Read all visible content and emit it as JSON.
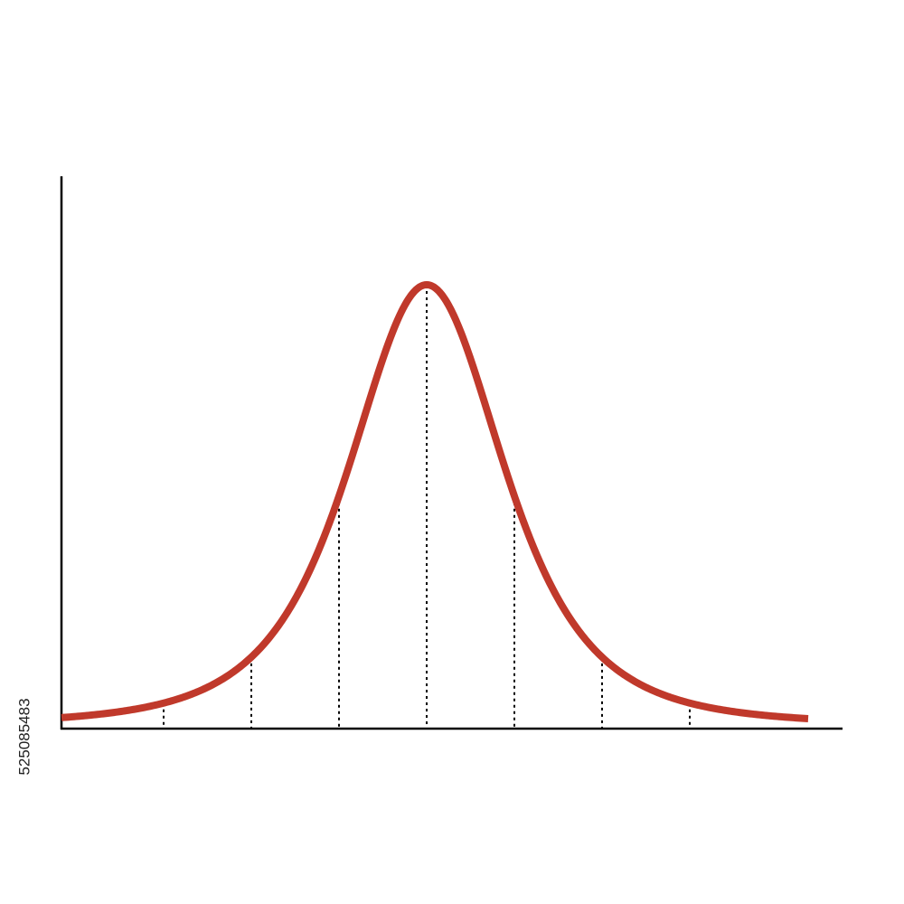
{
  "image_id": "525085483"
}
